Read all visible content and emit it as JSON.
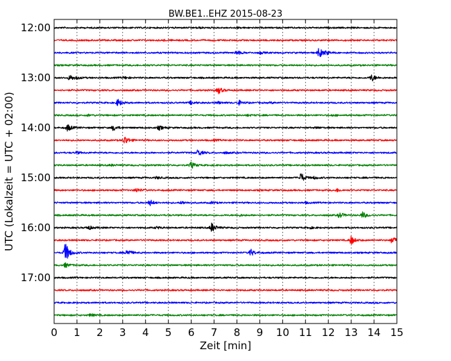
{
  "chart_data": {
    "type": "line",
    "title": "BW.BE1..EHZ 2015-08-23",
    "xlabel": "Zeit  [min]",
    "ylabel": "UTC (Lokalzeit = UTC + 02:00)",
    "xlim": [
      0,
      15
    ],
    "x_ticks": [
      "0",
      "1",
      "2",
      "3",
      "4",
      "5",
      "6",
      "7",
      "8",
      "9",
      "10",
      "11",
      "12",
      "13",
      "14",
      "15"
    ],
    "y_ticks": [
      "12:00",
      "13:00",
      "14:00",
      "15:00",
      "16:00",
      "17:00"
    ],
    "grid": true,
    "trace_colors": [
      "#000000",
      "#ff0000",
      "#0000ff",
      "#008000"
    ],
    "traces": [
      {
        "start": "12:00",
        "events": [
          [
            6.3,
            1.0
          ],
          [
            8.0,
            0.6
          ]
        ]
      },
      {
        "start": "12:15",
        "events": [
          [
            4.8,
            0.6
          ]
        ]
      },
      {
        "start": "12:30",
        "events": [
          [
            8.0,
            3.0
          ],
          [
            9.0,
            1.5
          ],
          [
            11.6,
            7.0
          ],
          [
            11.9,
            2.0
          ]
        ]
      },
      {
        "start": "12:45",
        "events": [
          [
            4.0,
            0.5
          ],
          [
            9.0,
            0.5
          ]
        ]
      },
      {
        "start": "13:00",
        "events": [
          [
            0.7,
            4.0
          ],
          [
            1.0,
            1.2
          ],
          [
            3.1,
            1.5
          ],
          [
            13.9,
            5.0
          ]
        ]
      },
      {
        "start": "13:15",
        "events": [
          [
            7.2,
            4.5
          ]
        ]
      },
      {
        "start": "13:30",
        "events": [
          [
            2.8,
            5.0
          ],
          [
            6.0,
            2.5
          ],
          [
            7.2,
            1.5
          ],
          [
            8.1,
            3.0
          ],
          [
            9.5,
            0.8
          ]
        ]
      },
      {
        "start": "13:45",
        "events": [
          [
            1.5,
            1.2
          ],
          [
            8.5,
            1.0
          ],
          [
            12.2,
            0.8
          ]
        ]
      },
      {
        "start": "14:00",
        "events": [
          [
            0.6,
            5.0
          ],
          [
            2.6,
            4.0
          ],
          [
            4.6,
            3.0
          ],
          [
            11.5,
            1.0
          ]
        ]
      },
      {
        "start": "14:15",
        "events": [
          [
            3.1,
            6.0
          ],
          [
            7.0,
            1.0
          ]
        ]
      },
      {
        "start": "14:30",
        "events": [
          [
            1.0,
            1.5
          ],
          [
            6.3,
            5.0
          ],
          [
            7.5,
            1.2
          ]
        ]
      },
      {
        "start": "14:45",
        "events": [
          [
            2.5,
            1.0
          ],
          [
            6.0,
            4.5
          ]
        ]
      },
      {
        "start": "15:00",
        "events": [
          [
            4.5,
            1.5
          ],
          [
            10.8,
            7.0
          ],
          [
            11.4,
            1.5
          ]
        ]
      },
      {
        "start": "15:15",
        "events": [
          [
            3.6,
            3.0
          ],
          [
            12.4,
            2.0
          ]
        ]
      },
      {
        "start": "15:30",
        "events": [
          [
            4.2,
            4.0
          ],
          [
            5.6,
            2.0
          ],
          [
            6.9,
            1.2
          ],
          [
            11.0,
            1.0
          ]
        ]
      },
      {
        "start": "15:45",
        "events": [
          [
            8.1,
            1.2
          ],
          [
            12.5,
            4.0
          ],
          [
            13.5,
            4.5
          ]
        ]
      },
      {
        "start": "16:00",
        "events": [
          [
            1.5,
            3.0
          ],
          [
            4.5,
            1.5
          ],
          [
            6.9,
            7.0
          ],
          [
            11.2,
            1.2
          ]
        ]
      },
      {
        "start": "16:15",
        "events": [
          [
            13.0,
            6.0
          ],
          [
            14.8,
            5.0
          ]
        ]
      },
      {
        "start": "16:30",
        "events": [
          [
            0.5,
            15.0
          ],
          [
            3.2,
            5.0
          ],
          [
            8.6,
            5.0
          ]
        ]
      },
      {
        "start": "16:45",
        "events": [
          [
            0.5,
            3.0
          ]
        ]
      },
      {
        "start": "17:00",
        "events": []
      },
      {
        "start": "17:15",
        "events": []
      },
      {
        "start": "17:30",
        "events": []
      },
      {
        "start": "17:45",
        "events": [
          [
            1.6,
            2.0
          ]
        ]
      }
    ]
  }
}
